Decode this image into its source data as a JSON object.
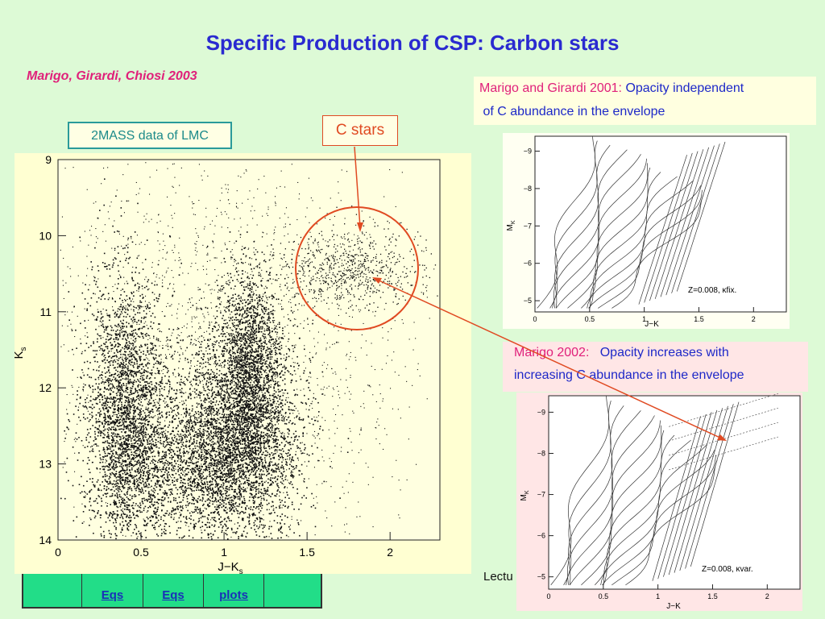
{
  "slide": {
    "title": "Specific Production of CSP: Carbon stars",
    "authors": "Marigo, Girardi, Chiosi 2003"
  },
  "notes": {
    "mg2001_label": "Marigo and Girardi 2001:",
    "mg2001_text_1": "Opacity independent",
    "mg2001_text_2": "of  C abundance in the envelope",
    "twomass": "2MASS data of LMC",
    "cstars": "C stars",
    "mg2002_label": "Marigo 2002:",
    "mg2002_text_1": "Opacity increases with",
    "mg2002_text_2": "increasing C abundance in the envelope",
    "lecture": "Lectu"
  },
  "nav": {
    "links": [
      "Eqs",
      "Eqs",
      "plots",
      ""
    ]
  },
  "cmd_plot": {
    "xlabel": "J−K",
    "xlabel_sub": "s",
    "ylabel": "K",
    "ylabel_sub": "s",
    "xticks": [
      "0",
      "0.5",
      "1",
      "1.5",
      "2"
    ],
    "yticks": [
      "9",
      "10",
      "11",
      "12",
      "13",
      "14"
    ],
    "xlim": [
      0,
      2.3
    ],
    "ylim": [
      14,
      9
    ]
  },
  "plot2001": {
    "xlabel": "J−K",
    "ylabel": "M",
    "ylabel_sub": "K",
    "xticks": [
      "0",
      "0.5",
      "1",
      "1.5",
      "2"
    ],
    "yticks": [
      "−9",
      "−8",
      "−7",
      "−6",
      "−5"
    ],
    "annotation": "Z=0.008,  κfix."
  },
  "plot2002": {
    "xlabel": "J−K",
    "ylabel": "M",
    "ylabel_sub": "K",
    "xticks": [
      "0",
      "0.5",
      "1",
      "1.5",
      "2"
    ],
    "yticks": [
      "−9",
      "−8",
      "−7",
      "−6",
      "−5"
    ],
    "annotation": "Z=0.008,  κvar."
  },
  "colors": {
    "title": "#2a2ad0",
    "accent_pink": "#e0207a",
    "annotation_red": "#e04a22",
    "teal": "#1c8a8a",
    "background": "#ddfad6"
  }
}
